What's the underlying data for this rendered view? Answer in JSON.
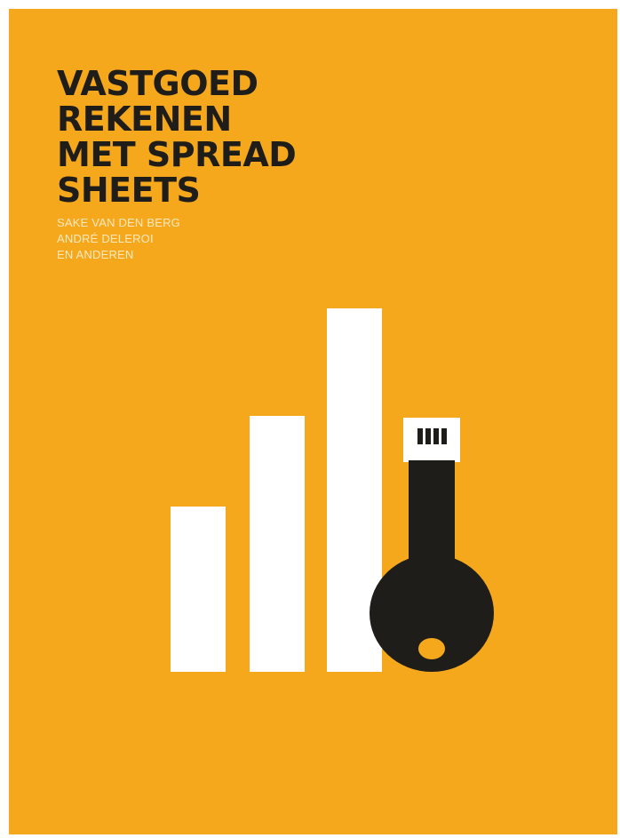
{
  "cover": {
    "background_color": "#f6a81c",
    "title_lines": [
      "VASTGOED",
      "REKENEN",
      "MET SPREAD",
      "SHEETS"
    ],
    "authors": [
      "SAKE VAN DEN BERG",
      "ANDRÉ DELEROI",
      "EN ANDEREN"
    ]
  },
  "illustration": {
    "bar_color": "#ffffff",
    "key_color": "#1f1d1a",
    "icons": [
      "bar-graph-icon",
      "usb-key-icon"
    ],
    "relative_bar_heights": [
      0.45,
      0.71,
      1.0
    ]
  }
}
